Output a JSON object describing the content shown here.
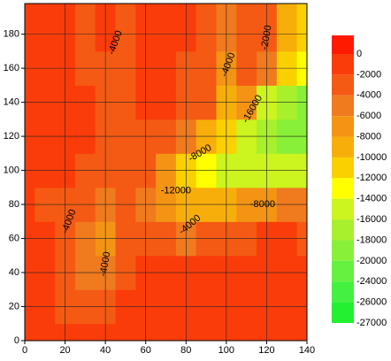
{
  "chart_data": {
    "type": "contour",
    "xlim": [
      0,
      140
    ],
    "ylim": [
      0,
      198
    ],
    "xticks": [
      0,
      20,
      40,
      60,
      80,
      100,
      120,
      140
    ],
    "yticks": [
      0,
      20,
      40,
      60,
      80,
      100,
      120,
      140,
      160,
      180
    ],
    "grid": true,
    "grid_x": [
      0,
      10,
      20,
      30,
      40,
      50,
      60,
      70,
      80,
      90,
      100,
      110,
      120,
      130,
      140
    ],
    "grid_y": [
      0,
      20,
      40,
      60,
      80,
      100,
      120,
      140,
      160,
      180
    ],
    "z": [
      [
        -1000,
        -1000,
        -2000,
        -2000,
        -1000,
        -1000,
        -1000,
        -1000,
        -1000,
        -2000,
        -1000,
        -1000,
        -1000,
        -1000,
        -1000
      ],
      [
        -1000,
        -2000,
        -3000,
        -3000,
        -3000,
        -2000,
        -1000,
        -2000,
        -1000,
        -2000,
        -1000,
        -2000,
        -1000,
        -2000,
        -2000
      ],
      [
        -2000,
        -2000,
        -4000,
        -6000,
        -5000,
        -3000,
        -2000,
        -2000,
        -2000,
        -2000,
        -2000,
        -2000,
        -2000,
        -2000,
        -2000
      ],
      [
        -2000,
        -2000,
        -4000,
        -6000,
        -7000,
        -4000,
        -3000,
        -4000,
        -5000,
        -4000,
        -3000,
        -3000,
        -2000,
        -2000,
        -3000
      ],
      [
        -2000,
        -3000,
        -3000,
        -4000,
        -5000,
        -4000,
        -5000,
        -7000,
        -9000,
        -9000,
        -9000,
        -8000,
        -7000,
        -6000,
        -6000
      ],
      [
        -2000,
        -2000,
        -2000,
        -3000,
        -3000,
        -3000,
        -4000,
        -8000,
        -12000,
        -14000,
        -15000,
        -15000,
        -16000,
        -16000,
        -15000
      ],
      [
        -1000,
        -2000,
        -2000,
        -2000,
        -3000,
        -3000,
        -3000,
        -4000,
        -6000,
        -9000,
        -12000,
        -16000,
        -18000,
        -20000,
        -19000
      ],
      [
        -1000,
        -2000,
        -1000,
        -2000,
        -3000,
        -3000,
        -2000,
        -2000,
        -3000,
        -4000,
        -10000,
        -8000,
        -16000,
        -18000,
        -20000
      ],
      [
        -1000,
        -2000,
        -2000,
        -3000,
        -3000,
        -4000,
        -2000,
        -2000,
        -3000,
        -4000,
        -8000,
        -4000,
        -6000,
        -12000,
        -14000
      ],
      [
        -2000,
        -2000,
        -1000,
        -3000,
        -2000,
        -3000,
        -2000,
        -1000,
        -2000,
        -3000,
        -6000,
        -3000,
        -4000,
        -10000,
        -12000
      ]
    ],
    "colorbar": {
      "levels": [
        0,
        -2000,
        -4000,
        -6000,
        -8000,
        -10000,
        -12000,
        -14000,
        -16000,
        -18000,
        -20000,
        -24000,
        -26000,
        -27000
      ],
      "colors": [
        "#ff1a00",
        "#fa3c0a",
        "#f45a14",
        "#f07a1e",
        "#f49414",
        "#f8ae0a",
        "#fad000",
        "#ffff00",
        "#ccf41e",
        "#a8f02c",
        "#88f038",
        "#66f040",
        "#44f040",
        "#22f030"
      ]
    },
    "contour_labels": [
      "-4000",
      "-2000",
      "-4000",
      "-8000",
      "-12000",
      "-8000",
      "-4000",
      "-4000",
      "-4000",
      "-16000"
    ]
  }
}
